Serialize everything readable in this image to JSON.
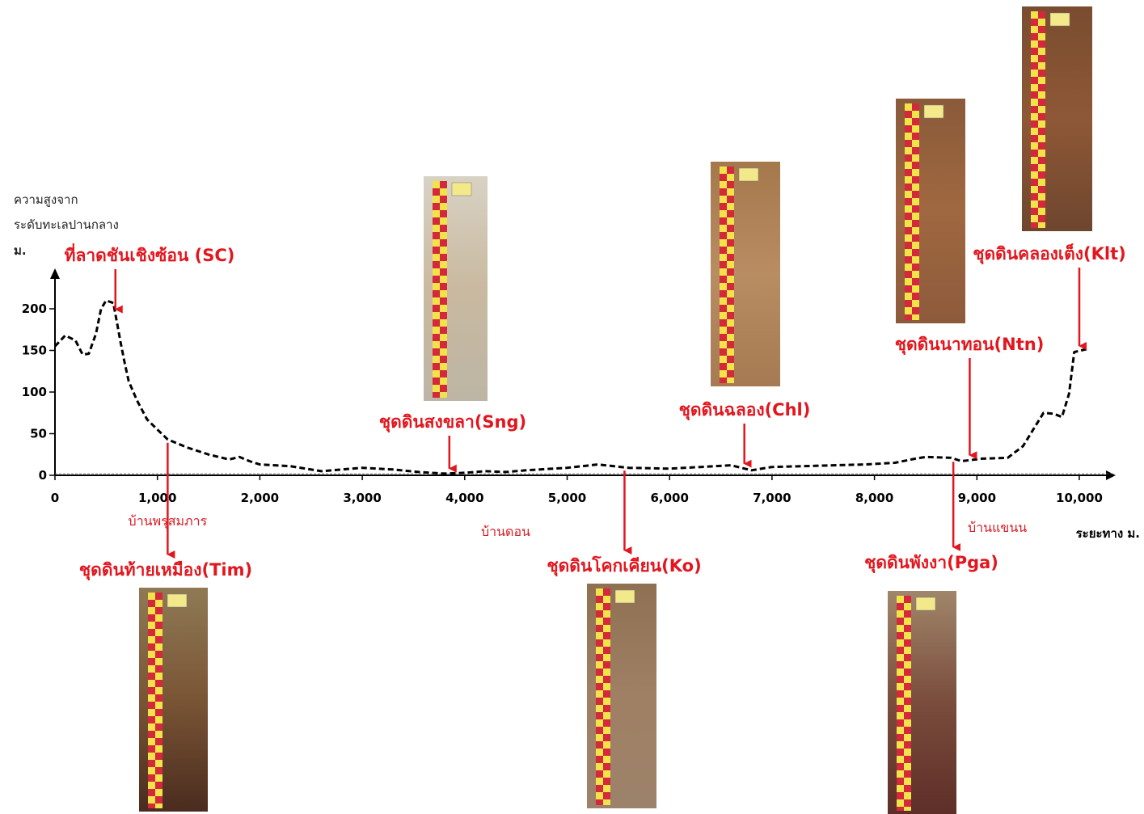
{
  "chart_data": {
    "type": "line",
    "ylabel_lines": [
      "ความสูงจาก",
      "ระดับทะเลปานกลาง",
      "ม."
    ],
    "xlabel": "ระยะทาง ม.",
    "xlim": [
      0,
      10300
    ],
    "ylim": [
      0,
      260
    ],
    "x_ticks": [
      0,
      1000,
      2000,
      3000,
      4000,
      5000,
      6000,
      7000,
      8000,
      9000,
      10000
    ],
    "x_tick_labels": [
      "0",
      "1,000",
      "2,000",
      "3,000",
      "4,000",
      "5,000",
      "6,000",
      "7,000",
      "8,000",
      "9,000",
      "10,000"
    ],
    "y_ticks": [
      0,
      50,
      100,
      150,
      200
    ],
    "y_tick_labels": [
      "0",
      "50",
      "100",
      "150",
      "200"
    ],
    "series": [
      {
        "style": "dashed",
        "x": [
          0,
          100,
          200,
          270,
          330,
          400,
          450,
          500,
          570,
          640,
          680,
          720,
          800,
          900,
          1000,
          1100,
          1300,
          1500,
          1700,
          1800,
          1900,
          2000,
          2300,
          2600,
          2800,
          3000,
          3300,
          3550,
          3800,
          4000,
          4200,
          4400,
          4600,
          5000,
          5300,
          5600,
          6000,
          6300,
          6600,
          6800,
          7000,
          7300,
          7600,
          7900,
          8200,
          8400,
          8500,
          8750,
          8850,
          9050,
          9300,
          9450,
          9550,
          9650,
          9750,
          9830,
          9900,
          9950,
          10050,
          10100
        ],
        "y": [
          155,
          168,
          162,
          145,
          146,
          170,
          200,
          210,
          207,
          160,
          135,
          113,
          90,
          67,
          55,
          43,
          33,
          25,
          19,
          22,
          17,
          13,
          11,
          5,
          7,
          9,
          7,
          4,
          2,
          3,
          5,
          4,
          6,
          9,
          13,
          9,
          8,
          10,
          12,
          6,
          10,
          11,
          12,
          13,
          15,
          20,
          22,
          21,
          17,
          20,
          21,
          35,
          55,
          75,
          74,
          70,
          98,
          148,
          151,
          152
        ]
      }
    ],
    "annotations": [
      {
        "label": "ที่ลาดชันเชิงซ้อน (SC)",
        "x": 590,
        "side": "top"
      },
      {
        "label": "ชุดดินท้ายเหมือง(Tim)",
        "x": 1100,
        "side": "bottom",
        "photo_tag": "Tim"
      },
      {
        "label": "ชุดดินสงขลา(Sng)",
        "x": 3850,
        "side": "top",
        "photo_tag": "Sng"
      },
      {
        "label": "ชุดดินโคกเคียน(Ko)",
        "x": 5560,
        "side": "bottom",
        "photo_tag": "Ko"
      },
      {
        "label": "ชุดดินฉลอง(Chl)",
        "x": 6730,
        "side": "top",
        "photo_tag": "Chl"
      },
      {
        "label": "ชุดดินพังงา(Pga)",
        "x": 8770,
        "side": "bottom",
        "photo_tag": "Pga"
      },
      {
        "label": "ชุดดินนาทอน(Ntn)",
        "x": 8930,
        "side": "top",
        "photo_tag": "Ntn"
      },
      {
        "label": "ชุดดินคลองเต็ง(Klt)",
        "x": 10000,
        "side": "top",
        "photo_tag": "Klt"
      }
    ],
    "places": [
      {
        "label": "บ้านพรุสมภาร",
        "x": 1100
      },
      {
        "label": "บ้านดอน",
        "x": 4400
      },
      {
        "label": "บ้านแขนน",
        "x": 9200
      }
    ]
  },
  "colors": {
    "line": "#000000",
    "annotation": "#e3161e",
    "place": "#d81b24",
    "ruler_red": "#d4283b",
    "ruler_yellow": "#f2e34a"
  }
}
